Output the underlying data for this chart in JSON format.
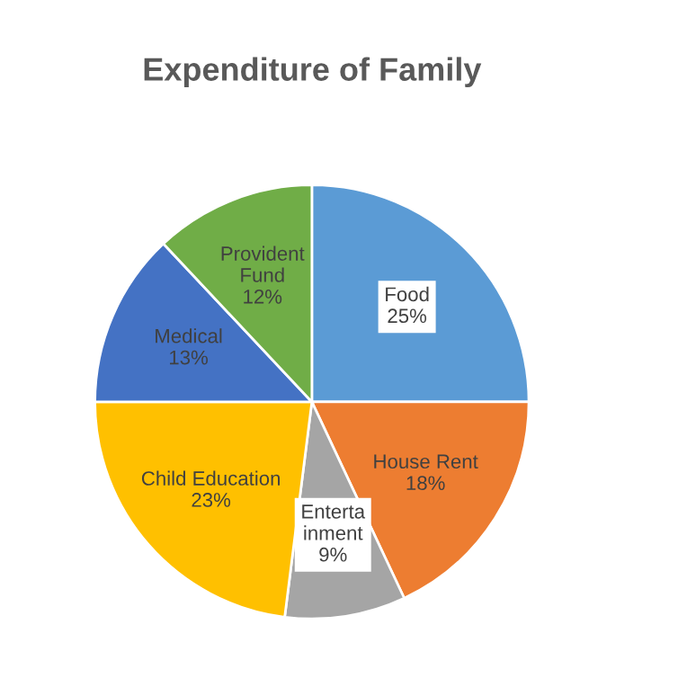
{
  "chart_data": {
    "type": "pie",
    "title": "Expenditure of Family",
    "categories": [
      "Food",
      "House Rent",
      "Enterta\ninment",
      "Child Education",
      "Medical",
      "Provident\nFund"
    ],
    "values": [
      25,
      18,
      9,
      23,
      13,
      12
    ],
    "colors": [
      "#5b9bd5",
      "#ed7d31",
      "#a5a5a5",
      "#ffc000",
      "#4472c4",
      "#70ad47"
    ],
    "value_labels": [
      "25%",
      "18%",
      "9%",
      "23%",
      "13%",
      "12%"
    ]
  }
}
